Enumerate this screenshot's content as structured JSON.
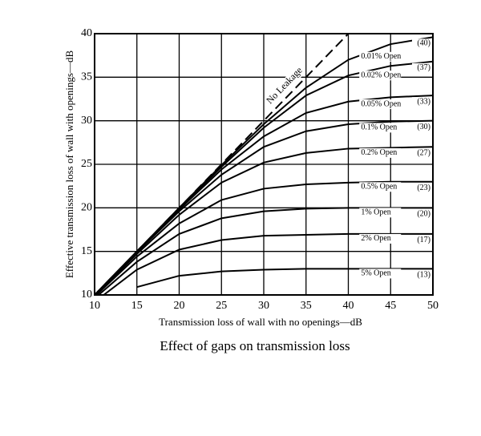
{
  "chart_data": {
    "type": "line",
    "title": "Effect of gaps on transmission loss",
    "x_label": "Transmission loss of wall with no openings—dB",
    "y_label": "Effective transmission loss of wall with openings—dB",
    "annotation": "No Leakage",
    "reference": {
      "x": [
        10,
        40
      ],
      "values": [
        10,
        40
      ],
      "color": "#000000"
    },
    "x": [
      10,
      15,
      20,
      25,
      30,
      35,
      40,
      45,
      50
    ],
    "series": [
      {
        "name": "0.01% Open",
        "end_label": "(40)",
        "color": "#000000",
        "values": [
          10.0,
          15.0,
          20.0,
          24.9,
          29.6,
          33.8,
          37.0,
          38.8,
          39.6
        ]
      },
      {
        "name": "0.02% Open",
        "end_label": "(37)",
        "color": "#000000",
        "values": [
          10.0,
          15.0,
          19.9,
          24.7,
          29.2,
          32.9,
          35.2,
          36.3,
          36.8
        ]
      },
      {
        "name": "0.05% Open",
        "end_label": "(33)",
        "color": "#000000",
        "values": [
          10.0,
          14.9,
          19.8,
          24.4,
          28.2,
          30.9,
          32.2,
          32.7,
          32.9
        ]
      },
      {
        "name": "0.1% Open",
        "end_label": "(30)",
        "color": "#000000",
        "values": [
          10.0,
          14.9,
          19.6,
          23.8,
          27.0,
          28.8,
          29.6,
          29.9,
          30.0
        ]
      },
      {
        "name": "0.2% Open",
        "end_label": "(27)",
        "color": "#000000",
        "values": [
          9.9,
          14.7,
          19.2,
          22.9,
          25.2,
          26.3,
          26.8,
          26.9,
          27.0
        ]
      },
      {
        "name": "0.5% Open",
        "end_label": "(23)",
        "color": "#000000",
        "values": [
          9.8,
          14.4,
          18.2,
          20.9,
          22.2,
          22.7,
          22.9,
          23.0,
          23.0
        ]
      },
      {
        "name": "1% Open",
        "end_label": "(20)",
        "color": "#000000",
        "values": [
          9.6,
          13.8,
          17.0,
          18.8,
          19.6,
          19.9,
          20.0,
          20.0,
          20.0
        ]
      },
      {
        "name": "2% Open",
        "end_label": "(17)",
        "color": "#000000",
        "values": [
          9.2,
          12.9,
          15.2,
          16.3,
          16.8,
          16.9,
          17.0,
          17.0,
          17.0
        ]
      },
      {
        "name": "5% Open",
        "end_label": "(13)",
        "color": "#000000",
        "values": [
          null,
          10.9,
          12.2,
          12.7,
          12.9,
          13.0,
          13.0,
          13.0,
          13.0
        ]
      }
    ],
    "xlim": [
      10,
      50
    ],
    "ylim": [
      10,
      40
    ],
    "xticks": [
      10,
      15,
      20,
      25,
      30,
      35,
      40,
      45,
      50
    ],
    "yticks": [
      10,
      15,
      20,
      25,
      30,
      35,
      40
    ],
    "grid": true
  }
}
